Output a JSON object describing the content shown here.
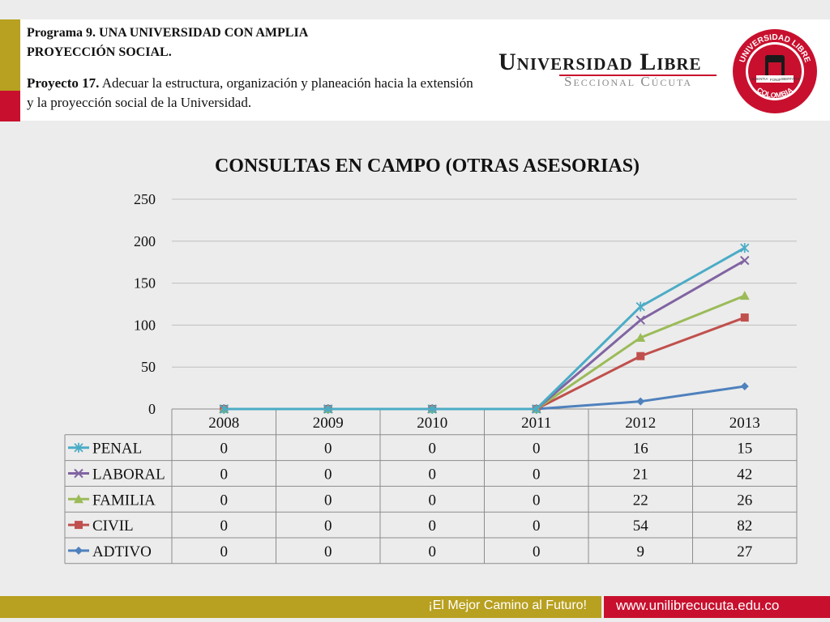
{
  "header": {
    "programa": "Programa 9. UNA UNIVERSIDAD CON AMPLIA PROYECCIÓN SOCIAL.",
    "proyecto_label": "Proyecto 17.",
    "proyecto_text": "Adecuar la estructura, organización y planeación hacia la extensión y la proyección social de la Universidad.",
    "university": "Universidad Libre",
    "seccional": "Seccional Cúcuta",
    "seal_top": "UNIVERSIDAD LIBRE",
    "seal_bottom": "COLOMBIA",
    "seal_left": "SCIENTIA",
    "seal_center": "FONS",
    "seal_right": "LIBERTATIS"
  },
  "footer": {
    "slogan": "¡El Mejor Camino al Futuro!",
    "url": "www.unilibrecucuta.edu.co"
  },
  "chart_data": {
    "type": "line",
    "title": "CONSULTAS EN CAMPO (OTRAS ASESORIAS)",
    "categories": [
      "2008",
      "2009",
      "2010",
      "2011",
      "2012",
      "2013"
    ],
    "ylim": [
      0,
      250
    ],
    "yticks": [
      0,
      50,
      100,
      150,
      200,
      250
    ],
    "stacked": true,
    "grid": true,
    "legend": "table-below",
    "series": [
      {
        "name": "PENAL",
        "values": [
          0,
          0,
          0,
          0,
          16,
          15
        ],
        "color": "#4bacc6",
        "marker": "star"
      },
      {
        "name": "LABORAL",
        "values": [
          0,
          0,
          0,
          0,
          21,
          42
        ],
        "color": "#8064a2",
        "marker": "x"
      },
      {
        "name": "FAMILIA",
        "values": [
          0,
          0,
          0,
          0,
          22,
          26
        ],
        "color": "#9bbb59",
        "marker": "triangle"
      },
      {
        "name": "CIVIL",
        "values": [
          0,
          0,
          0,
          0,
          54,
          82
        ],
        "color": "#c0504d",
        "marker": "square"
      },
      {
        "name": "ADTIVO",
        "values": [
          0,
          0,
          0,
          0,
          9,
          27
        ],
        "color": "#4f81bd",
        "marker": "diamond"
      }
    ]
  }
}
